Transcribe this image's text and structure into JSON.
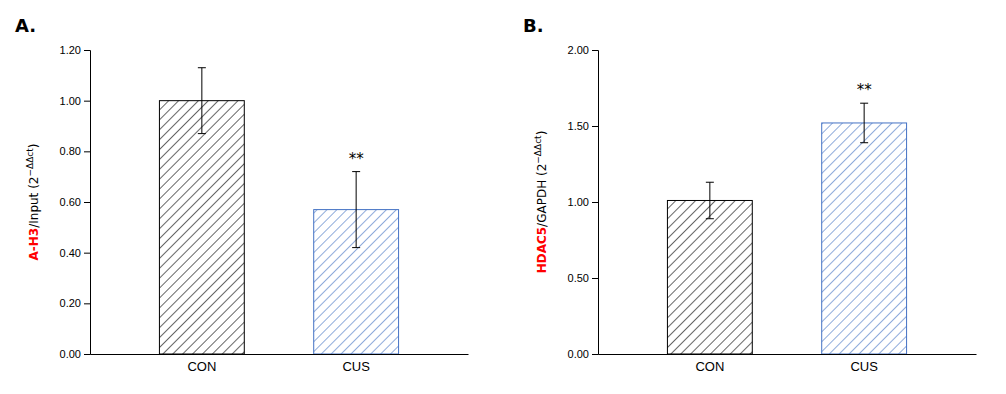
{
  "chart_data": [
    {
      "type": "bar",
      "title": "A.",
      "ylabel": "A-H3/Input (2−ΔΔct)",
      "categories": [
        "CON",
        "CUS"
      ],
      "values": [
        1.0,
        0.57
      ],
      "errors": [
        0.13,
        0.15
      ],
      "colors": [
        "black",
        "#4472c4"
      ],
      "ylim": [
        0,
        1.2
      ],
      "yticks": [
        {
          "value": 0,
          "label": "0.00"
        },
        {
          "value": 0.2,
          "label": "0.20"
        },
        {
          "value": 0.4,
          "label": "0.40"
        },
        {
          "value": 0.6,
          "label": "0.60"
        },
        {
          "value": 0.8,
          "label": "0.80"
        },
        {
          "value": 1.0,
          "label": "1.00"
        },
        {
          "value": 1.2,
          "label": "1.20"
        }
      ],
      "grid": false,
      "annotations": [
        {
          "text": "**",
          "category": "CUS"
        }
      ]
    },
    {
      "type": "bar",
      "title": "B.",
      "ylabel": "HDAC5/GAPDH (2−ΔΔct)",
      "categories": [
        "CON",
        "CUS"
      ],
      "values": [
        1.01,
        1.52
      ],
      "errors": [
        0.12,
        0.13
      ],
      "colors": [
        "black",
        "#4472c4"
      ],
      "ylim": [
        0,
        2.0
      ],
      "yticks": [
        {
          "value": 0,
          "label": "0.00"
        },
        {
          "value": 0.5,
          "label": "0.50"
        },
        {
          "value": 1.0,
          "label": "1.00"
        },
        {
          "value": 1.5,
          "label": "1.50"
        },
        {
          "value": 2.0,
          "label": "2.00"
        }
      ],
      "grid": false,
      "annotations": [
        {
          "text": "**",
          "category": "CUS"
        }
      ]
    }
  ]
}
